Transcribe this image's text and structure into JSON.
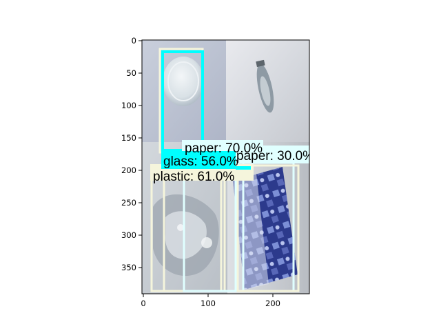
{
  "figure": {
    "x_ticks": [
      "0",
      "100",
      "200"
    ],
    "y_ticks": [
      "0",
      "50",
      "100",
      "150",
      "200",
      "250",
      "300",
      "350"
    ],
    "colors": {
      "glass_box": "#00ffff",
      "paper_box": "#e0ffff",
      "plastic_box": "#f5f5dc",
      "axes": "#000000"
    }
  },
  "photos": [
    {
      "name": "round-glass-lid",
      "description_icon": "glass-jar-lid-icon"
    },
    {
      "name": "clear-bottle",
      "description_icon": "bottle-icon"
    },
    {
      "name": "crumpled-plastic",
      "description_icon": "plastic-bag-icon"
    },
    {
      "name": "printed-paper",
      "description_icon": "paper-sheet-icon"
    }
  ],
  "detections": [
    {
      "label": "glass: 56.0%",
      "color": "#00ffff"
    },
    {
      "label": "paper: 70.0%",
      "color": "#e0ffff"
    },
    {
      "label": "paper: 30.0%",
      "color": "#e0ffff"
    },
    {
      "label": "plastic: 61.0%",
      "color": "#f5f5dc"
    }
  ]
}
